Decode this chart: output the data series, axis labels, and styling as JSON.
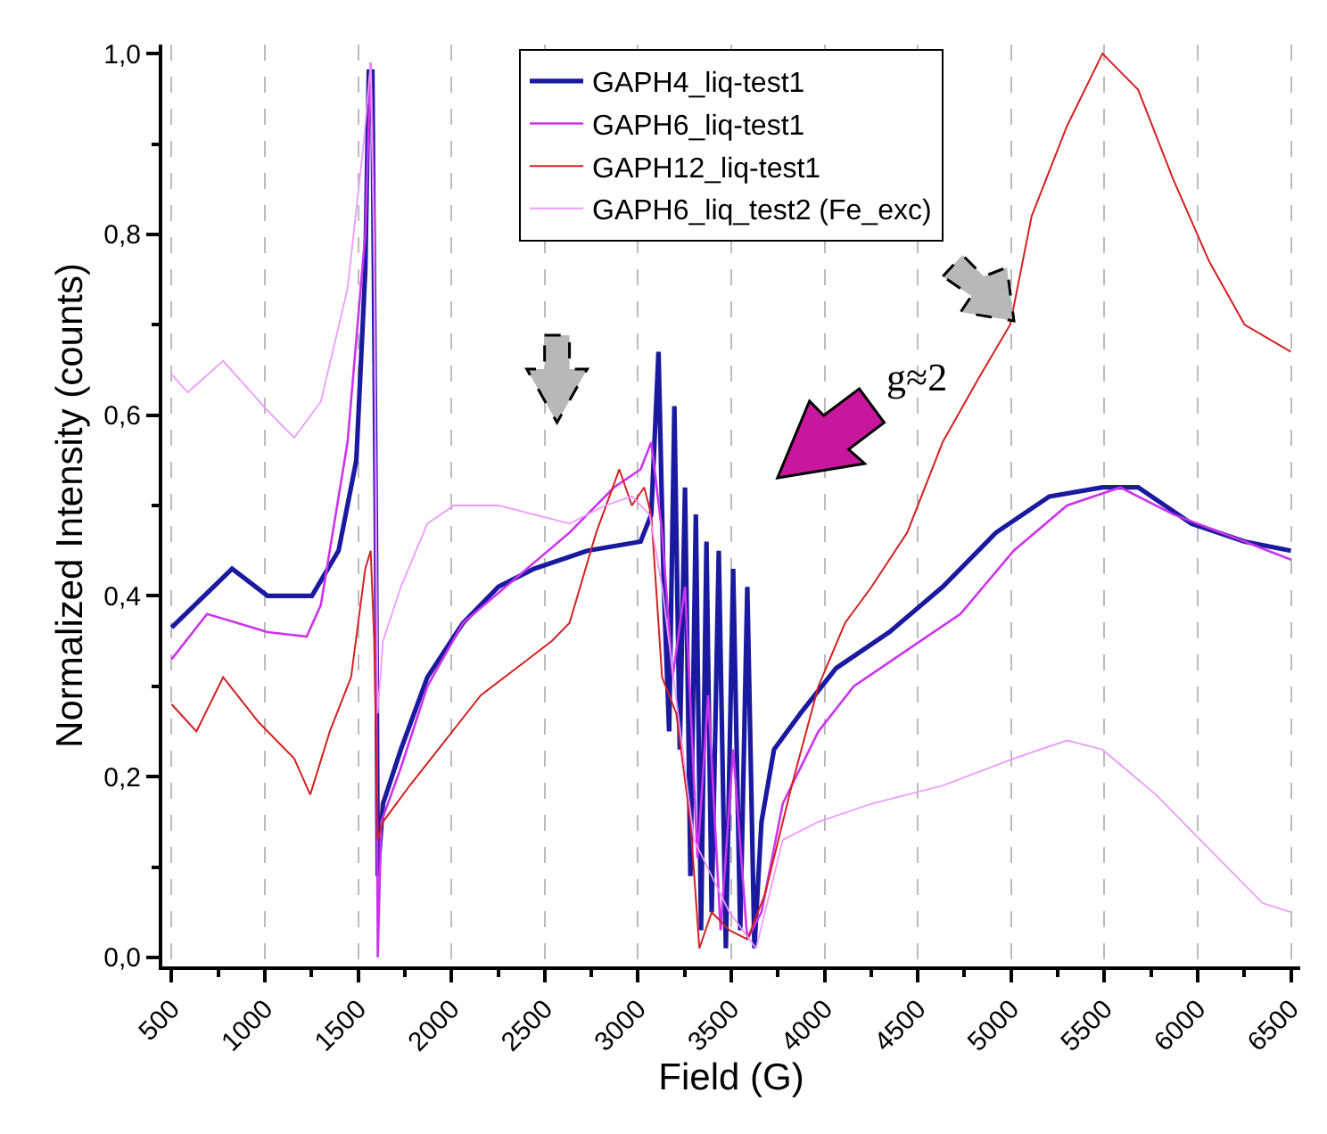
{
  "chart_data": {
    "type": "line",
    "xlabel": "Field (G)",
    "ylabel": "Normalized Intensity (counts)",
    "xlim": [
      450,
      6550
    ],
    "ylim": [
      -0.01,
      1.01
    ],
    "xticks": [
      500,
      1000,
      1500,
      2000,
      2500,
      3000,
      3500,
      4000,
      4500,
      5000,
      5500,
      6000,
      6500
    ],
    "yticks": [
      {
        "value": 0,
        "label": "0,0"
      },
      {
        "value": 0.2,
        "label": "0,2"
      },
      {
        "value": 0.4,
        "label": "0,4"
      },
      {
        "value": 0.6,
        "label": "0,6"
      },
      {
        "value": 0.8,
        "label": "0,8"
      },
      {
        "value": 1,
        "label": "1,0"
      }
    ],
    "grid": "x",
    "legend": "top",
    "marker": "none",
    "line_style": "solid",
    "annotations": [
      "g≈2"
    ],
    "series": [
      {
        "name": "GAPH4_liq-test1",
        "color": "#1a1aa0",
        "x": [
          500,
          824,
          1014,
          1252,
          1395,
          1490,
          1538,
          1557,
          1576,
          1595,
          1605,
          1633,
          1729,
          1871,
          2062,
          2252,
          2443,
          2729,
          3014,
          3071,
          3110,
          3138,
          3167,
          3195,
          3224,
          3252,
          3281,
          3310,
          3338,
          3367,
          3395,
          3433,
          3471,
          3510,
          3548,
          3586,
          3624,
          3662,
          3729,
          3871,
          4062,
          4348,
          4633,
          4919,
          5205,
          5490,
          5681,
          5967,
          6252,
          6500
        ],
        "values": [
          0.365,
          0.43,
          0.4,
          0.4,
          0.45,
          0.55,
          0.76,
          0.98,
          0.98,
          0.47,
          0.09,
          0.17,
          0.23,
          0.31,
          0.37,
          0.41,
          0.43,
          0.45,
          0.46,
          0.49,
          0.67,
          0.41,
          0.25,
          0.61,
          0.23,
          0.52,
          0.09,
          0.49,
          0.03,
          0.46,
          0.05,
          0.45,
          0.01,
          0.43,
          0.03,
          0.41,
          0.01,
          0.15,
          0.23,
          0.27,
          0.32,
          0.36,
          0.41,
          0.47,
          0.51,
          0.52,
          0.52,
          0.48,
          0.46,
          0.45
        ]
      },
      {
        "name": "GAPH6_liq-test1",
        "color": "#cc33ee",
        "x": [
          500,
          690,
          1014,
          1224,
          1300,
          1443,
          1538,
          1567,
          1586,
          1605,
          1624,
          1729,
          1871,
          2062,
          2348,
          2633,
          2871,
          3014,
          3071,
          3129,
          3186,
          3252,
          3319,
          3376,
          3443,
          3510,
          3586,
          3662,
          3776,
          3967,
          4157,
          4443,
          4729,
          5014,
          5300,
          5586,
          5871,
          6252,
          6500
        ],
        "values": [
          0.33,
          0.38,
          0.36,
          0.355,
          0.39,
          0.57,
          0.8,
          0.99,
          0.82,
          0.0,
          0.15,
          0.21,
          0.3,
          0.37,
          0.42,
          0.47,
          0.52,
          0.54,
          0.57,
          0.47,
          0.31,
          0.41,
          0.11,
          0.29,
          0.03,
          0.23,
          0.02,
          0.05,
          0.17,
          0.25,
          0.3,
          0.34,
          0.38,
          0.45,
          0.5,
          0.52,
          0.49,
          0.46,
          0.44
        ]
      },
      {
        "name": "GAPH12_liq-test1",
        "color": "#d42020",
        "x": [
          500,
          633,
          776,
          967,
          1157,
          1243,
          1348,
          1462,
          1538,
          1567,
          1586,
          1605,
          1633,
          1776,
          1967,
          2157,
          2348,
          2538,
          2633,
          2776,
          2900,
          2967,
          3033,
          3071,
          3129,
          3205,
          3281,
          3329,
          3395,
          3490,
          3586,
          3681,
          3824,
          3967,
          4110,
          4252,
          4443,
          4633,
          4824,
          4995,
          5110,
          5300,
          5490,
          5681,
          5871,
          6062,
          6252,
          6500
        ],
        "values": [
          0.28,
          0.25,
          0.31,
          0.26,
          0.22,
          0.18,
          0.25,
          0.31,
          0.43,
          0.45,
          0.35,
          0.13,
          0.15,
          0.19,
          0.24,
          0.29,
          0.32,
          0.35,
          0.37,
          0.47,
          0.54,
          0.5,
          0.52,
          0.49,
          0.31,
          0.27,
          0.15,
          0.01,
          0.05,
          0.03,
          0.02,
          0.07,
          0.19,
          0.3,
          0.37,
          0.41,
          0.47,
          0.57,
          0.64,
          0.7,
          0.82,
          0.92,
          1.0,
          0.96,
          0.86,
          0.77,
          0.7,
          0.67
        ]
      },
      {
        "name": "GAPH6_liq_test2 (Fe_exc)",
        "color": "#ee99ff",
        "x": [
          500,
          586,
          776,
          1014,
          1157,
          1300,
          1443,
          1529,
          1567,
          1586,
          1605,
          1633,
          1729,
          1871,
          2014,
          2252,
          2443,
          2633,
          2824,
          2967,
          3062,
          3129,
          3300,
          3490,
          3633,
          3776,
          3967,
          4252,
          4633,
          5014,
          5300,
          5490,
          5776,
          6062,
          6348,
          6500
        ],
        "values": [
          0.645,
          0.625,
          0.66,
          0.605,
          0.575,
          0.615,
          0.74,
          0.9,
          0.99,
          0.76,
          0.27,
          0.35,
          0.41,
          0.48,
          0.5,
          0.5,
          0.49,
          0.48,
          0.5,
          0.51,
          0.49,
          0.41,
          0.13,
          0.05,
          0.01,
          0.13,
          0.15,
          0.17,
          0.19,
          0.22,
          0.24,
          0.23,
          0.18,
          0.12,
          0.06,
          0.05
        ]
      }
    ]
  }
}
